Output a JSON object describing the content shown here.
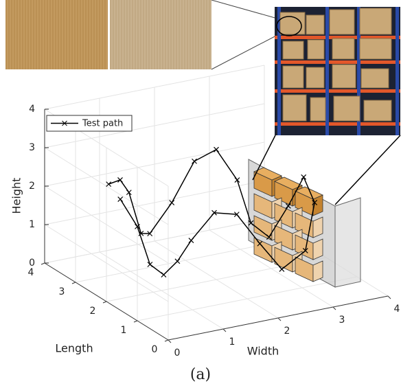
{
  "chart_data": {
    "type": "line3d",
    "xlabel": "Width",
    "ylabel": "Length",
    "zlabel": "Height",
    "xlim": [
      0,
      4
    ],
    "ylim": [
      0,
      4
    ],
    "zlim": [
      0,
      4
    ],
    "xticks": [
      0,
      1,
      2,
      3,
      4
    ],
    "yticks": [
      0,
      1,
      2,
      3,
      4
    ],
    "zticks": [
      0,
      1,
      2,
      3,
      4
    ],
    "grid": true,
    "legend": "upper left",
    "series": [
      {
        "name": "Test path",
        "color": "#000000",
        "marker": "x",
        "x": [
          0.04,
          0.25,
          0.41,
          0.63,
          0.79,
          1.19,
          1.6,
          2.0,
          2.38,
          2.63,
          2.96,
          3.31,
          3.59,
          3.79,
          3.51,
          3.08,
          2.68,
          2.26,
          1.85,
          1.43,
          1.18,
          0.93,
          0.68,
          0.45,
          0.14
        ],
        "y": [
          2,
          2,
          2,
          2,
          2,
          2,
          2,
          2,
          2,
          2,
          2,
          2,
          2,
          2,
          1.8,
          1.8,
          1.8,
          1.8,
          1.8,
          1.8,
          1.8,
          1.8,
          1.8,
          1.8,
          1.8
        ],
        "z": [
          3.04,
          3.09,
          2.72,
          1.59,
          1.54,
          2.23,
          3.19,
          3.38,
          2.48,
          1.29,
          0.83,
          1.54,
          2.21,
          1.49,
          0.42,
          0.06,
          0.84,
          1.72,
          1.88,
          1.28,
          0.81,
          0.53,
          0.87,
          1.92,
          2.72
        ]
      }
    ]
  },
  "caption": "(a)"
}
